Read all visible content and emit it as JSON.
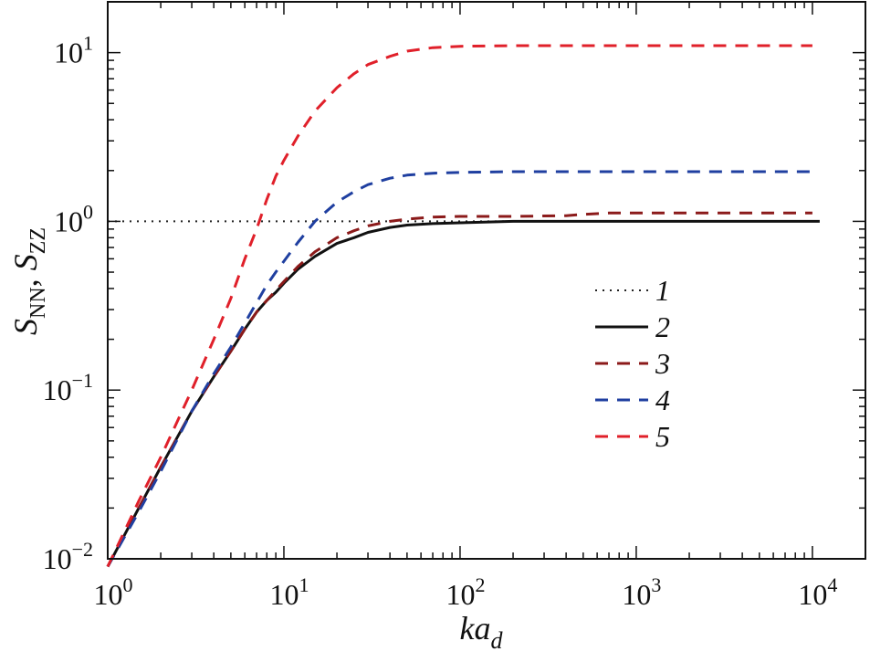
{
  "chart_data": {
    "type": "line",
    "title": "",
    "xscale": "log",
    "yscale": "log",
    "xlim": [
      1,
      20000
    ],
    "ylim": [
      0.01,
      20
    ],
    "x_ticks": [
      {
        "value": 1,
        "base": "10",
        "exp": "0"
      },
      {
        "value": 10,
        "base": "10",
        "exp": "1"
      },
      {
        "value": 100,
        "base": "10",
        "exp": "2"
      },
      {
        "value": 1000,
        "base": "10",
        "exp": "3"
      },
      {
        "value": 10000,
        "base": "10",
        "exp": "4"
      }
    ],
    "y_ticks": [
      {
        "value": 0.01,
        "base": "10",
        "exp": "−2"
      },
      {
        "value": 0.1,
        "base": "10",
        "exp": "−1"
      },
      {
        "value": 1,
        "base": "10",
        "exp": "0"
      },
      {
        "value": 10,
        "base": "10",
        "exp": "1"
      }
    ],
    "xlabel": {
      "main": "ka",
      "sub": "d"
    },
    "ylabel": {
      "s1": "S",
      "sub1": "NN",
      "sep": ", ",
      "s2": "S",
      "sub2": "ZZ"
    },
    "legend_position": "center-right",
    "series": [
      {
        "name": "1",
        "color": "#222222",
        "style": "dotted",
        "x": [
          1,
          10000
        ],
        "y": [
          1,
          1
        ]
      },
      {
        "name": "2",
        "color": "#111111",
        "style": "solid",
        "x": [
          1,
          1.5,
          2,
          3,
          4,
          5,
          6,
          7,
          8,
          9,
          10,
          12,
          15,
          20,
          25,
          30,
          40,
          50,
          70,
          100,
          200,
          500,
          1000,
          5000,
          11000
        ],
        "y": [
          0.009,
          0.02,
          0.035,
          0.075,
          0.12,
          0.17,
          0.23,
          0.29,
          0.34,
          0.38,
          0.43,
          0.52,
          0.62,
          0.74,
          0.8,
          0.86,
          0.92,
          0.95,
          0.97,
          0.98,
          1.0,
          1.0,
          1.0,
          1.0,
          1.0
        ]
      },
      {
        "name": "3",
        "color": "#8b1a1a",
        "style": "dashed",
        "x": [
          1,
          1.5,
          2,
          3,
          4,
          5,
          6,
          7,
          8,
          9,
          10,
          12,
          15,
          20,
          25,
          30,
          40,
          50,
          70,
          100,
          200,
          400,
          500,
          700,
          1000,
          5000,
          10000
        ],
        "y": [
          0.009,
          0.02,
          0.035,
          0.075,
          0.12,
          0.17,
          0.23,
          0.29,
          0.34,
          0.39,
          0.44,
          0.54,
          0.66,
          0.8,
          0.88,
          0.94,
          1.0,
          1.03,
          1.06,
          1.07,
          1.07,
          1.08,
          1.1,
          1.12,
          1.12,
          1.12,
          1.12
        ]
      },
      {
        "name": "4",
        "color": "#1f3fa0",
        "style": "dashed",
        "x": [
          1,
          1.5,
          2,
          3,
          4,
          5,
          6,
          7,
          8,
          9,
          10,
          12,
          15,
          20,
          25,
          30,
          40,
          50,
          70,
          100,
          200,
          500,
          1000,
          10000
        ],
        "y": [
          0.009,
          0.019,
          0.033,
          0.075,
          0.125,
          0.18,
          0.25,
          0.33,
          0.42,
          0.5,
          0.58,
          0.75,
          1.0,
          1.3,
          1.5,
          1.65,
          1.8,
          1.88,
          1.93,
          1.95,
          1.97,
          1.97,
          1.97,
          1.97
        ]
      },
      {
        "name": "5",
        "color": "#e0202a",
        "style": "dashed",
        "x": [
          1,
          1.5,
          2,
          3,
          4,
          5,
          6,
          7,
          8,
          9,
          10,
          12,
          15,
          20,
          25,
          30,
          40,
          50,
          70,
          100,
          200,
          500,
          1000,
          10000
        ],
        "y": [
          0.009,
          0.022,
          0.04,
          0.1,
          0.2,
          0.35,
          0.6,
          0.9,
          1.35,
          1.85,
          2.3,
          3.2,
          4.5,
          6.2,
          7.5,
          8.5,
          9.5,
          10.2,
          10.7,
          10.9,
          11.0,
          11.0,
          11.0,
          11.0
        ]
      }
    ]
  }
}
